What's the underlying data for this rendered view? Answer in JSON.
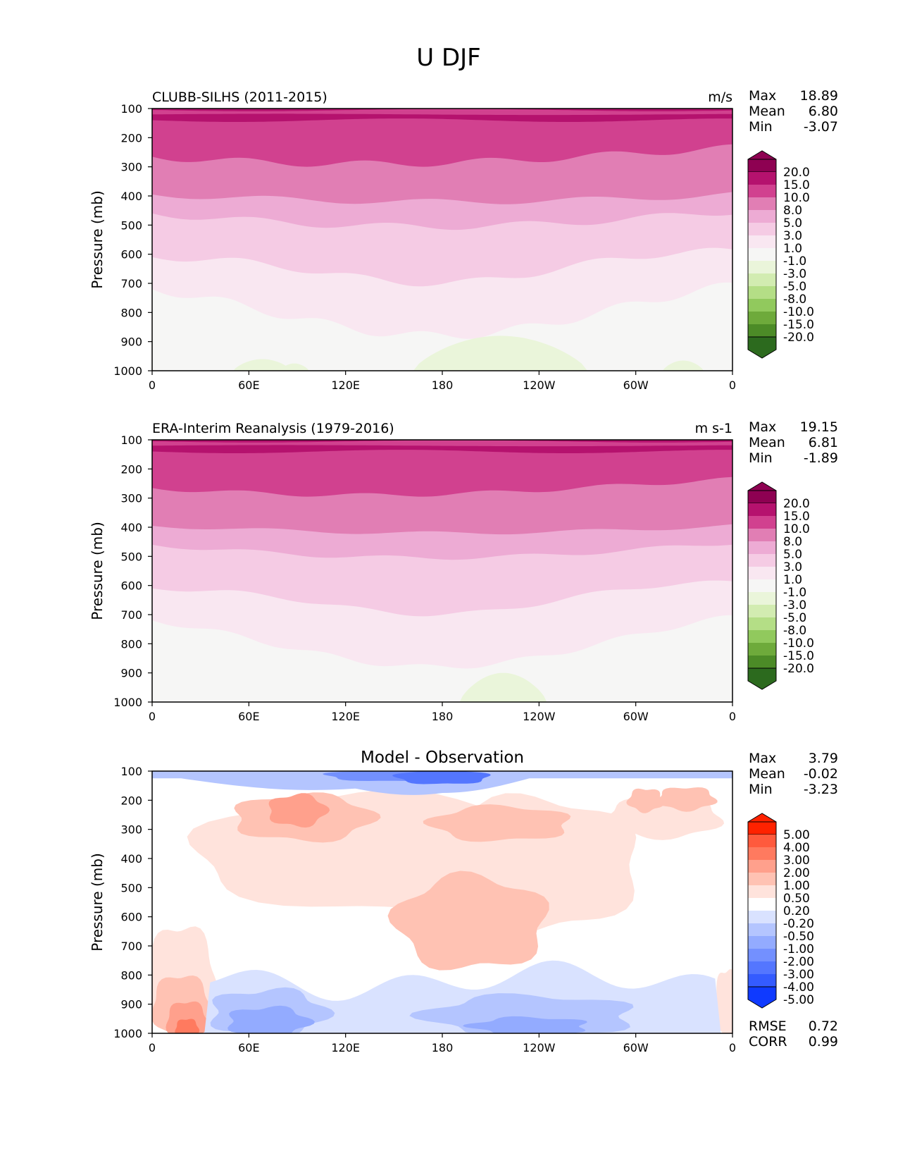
{
  "figure": {
    "title": "U DJF"
  },
  "colors": {
    "seq_levels": [
      "#8e0152",
      "#b5126e",
      "#d1418f",
      "#e17eb4",
      "#edabd4",
      "#f5cbe4",
      "#f9e7f1",
      "#f6f6f5",
      "#eaf5da",
      "#d2ecb1",
      "#b4de86",
      "#91c95d",
      "#6eaa3b",
      "#4c8b27",
      "#2c6a1e"
    ],
    "diff_levels": [
      "#ff2200",
      "#ff5a3d",
      "#ff7a5f",
      "#ffa08c",
      "#ffc2b3",
      "#ffe3dc",
      "#ffffff",
      "#d9e2ff",
      "#b4c5ff",
      "#93abff",
      "#7390ff",
      "#5476ff",
      "#345bff",
      "#0f3aff"
    ]
  },
  "chart_data": [
    {
      "type": "heatmap",
      "title": "CLUBB-SILHS (2011-2015)",
      "units": "m/s",
      "ylabel": "Pressure (mb)",
      "xlabel": "",
      "x_ticks": [
        "0",
        "60E",
        "120E",
        "180",
        "120W",
        "60W",
        "0"
      ],
      "y_ticks": [
        "100",
        "200",
        "300",
        "400",
        "500",
        "600",
        "700",
        "800",
        "900",
        "1000"
      ],
      "ylim": [
        100,
        1000
      ],
      "xlim": [
        0,
        360
      ],
      "stats": [
        {
          "label": "Max",
          "value": "18.89"
        },
        {
          "label": "Mean",
          "value": "6.80"
        },
        {
          "label": "Min",
          "value": "-3.07"
        }
      ],
      "colorbar_levels": [
        "20.0",
        "15.0",
        "10.0",
        "8.0",
        "5.0",
        "3.0",
        "1.0",
        "-1.0",
        "-3.0",
        "-5.0",
        "-8.0",
        "-10.0",
        "-15.0",
        "-20.0"
      ]
    },
    {
      "type": "heatmap",
      "title": "ERA-Interim Reanalysis (1979-2016)",
      "units": "m s-1",
      "ylabel": "Pressure (mb)",
      "xlabel": "",
      "x_ticks": [
        "0",
        "60E",
        "120E",
        "180",
        "120W",
        "60W",
        "0"
      ],
      "y_ticks": [
        "100",
        "200",
        "300",
        "400",
        "500",
        "600",
        "700",
        "800",
        "900",
        "1000"
      ],
      "ylim": [
        100,
        1000
      ],
      "xlim": [
        0,
        360
      ],
      "stats": [
        {
          "label": "Max",
          "value": "19.15"
        },
        {
          "label": "Mean",
          "value": "6.81"
        },
        {
          "label": "Min",
          "value": "-1.89"
        }
      ],
      "colorbar_levels": [
        "20.0",
        "15.0",
        "10.0",
        "8.0",
        "5.0",
        "3.0",
        "1.0",
        "-1.0",
        "-3.0",
        "-5.0",
        "-8.0",
        "-10.0",
        "-15.0",
        "-20.0"
      ]
    },
    {
      "type": "heatmap",
      "title": "Model - Observation",
      "units": "",
      "ylabel": "Pressure (mb)",
      "xlabel": "",
      "x_ticks": [
        "0",
        "60E",
        "120E",
        "180",
        "120W",
        "60W",
        "0"
      ],
      "y_ticks": [
        "100",
        "200",
        "300",
        "400",
        "500",
        "600",
        "700",
        "800",
        "900",
        "1000"
      ],
      "ylim": [
        100,
        1000
      ],
      "xlim": [
        0,
        360
      ],
      "stats": [
        {
          "label": "Max",
          "value": "3.79"
        },
        {
          "label": "Mean",
          "value": "-0.02"
        },
        {
          "label": "Min",
          "value": "-3.23"
        }
      ],
      "colorbar_levels": [
        "5.00",
        "4.00",
        "3.00",
        "2.00",
        "1.00",
        "0.50",
        "0.20",
        "-0.20",
        "-0.50",
        "-1.00",
        "-2.00",
        "-3.00",
        "-4.00",
        "-5.00"
      ],
      "extra_stats": [
        {
          "label": "RMSE",
          "value": "0.72"
        },
        {
          "label": "CORR",
          "value": "0.99"
        }
      ]
    }
  ]
}
